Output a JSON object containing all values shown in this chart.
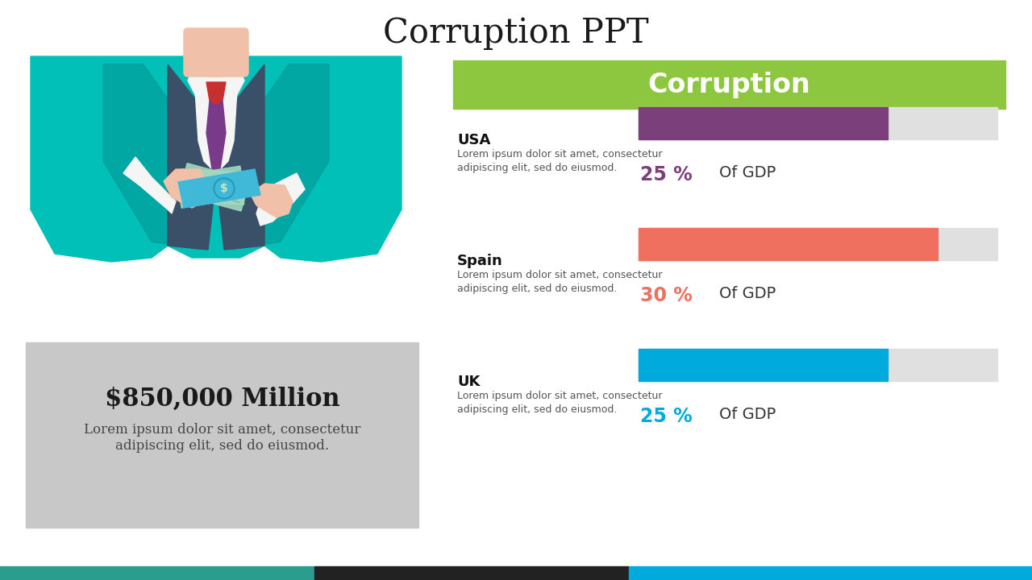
{
  "title": "Corruption PPT",
  "title_fontsize": 30,
  "header_text": "Corruption",
  "header_bg_color": "#8dc63f",
  "header_text_color": "#ffffff",
  "header_fontsize": 24,
  "rows": [
    {
      "country": "USA",
      "description": "Lorem ipsum dolor sit amet, consectetur\nadipiscing elit, sed do eiusmod.",
      "percentage": 25,
      "pct_label": "25 %",
      "bar_color": "#7b3f7b",
      "pct_color": "#7b3f7b"
    },
    {
      "country": "Spain",
      "description": "Lorem ipsum dolor sit amet, consectetur\nadipiscing elit, sed do eiusmod.",
      "percentage": 30,
      "pct_label": "30 %",
      "bar_color": "#f07060",
      "pct_color": "#f07060"
    },
    {
      "country": "UK",
      "description": "Lorem ipsum dolor sit amet, consectetur\nadipiscing elit, sed do eiusmod.",
      "percentage": 25,
      "pct_label": "25 %",
      "bar_color": "#00aadd",
      "pct_color": "#00aadd"
    }
  ],
  "of_gdp_text": "Of GDP",
  "bar_bg_color": "#e0e0e0",
  "money_box_color": "#c8c8c8",
  "money_amount": "$850,000 Million",
  "money_desc": "Lorem ipsum dolor sit amet, consectetur\nadipiscing elit, sed do eiusmod.",
  "footer_colors": [
    "#2a9d8f",
    "#222222",
    "#00aadd"
  ],
  "bg_color": "#ffffff",
  "jacket_teal": "#00c0b8",
  "jacket_dark": "#3a5068",
  "skin": "#f0c0a8",
  "skin_dark": "#e0b090",
  "white": "#f5f5f5",
  "tie_red": "#c83030",
  "tie_purple": "#7a3a8a",
  "money_blue": "#40b8d8",
  "money_green": "#a0d8c0",
  "money_line": "#80c0a8"
}
